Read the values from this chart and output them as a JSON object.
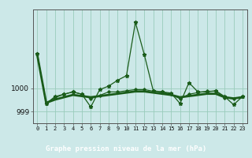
{
  "background_color": "#cce8e8",
  "grid_color": "#99ccbb",
  "line_color": "#1a5c1a",
  "xlabel_bg": "#2a6e2a",
  "xlabel_fg": "#ffffff",
  "hours": [
    0,
    1,
    2,
    3,
    4,
    5,
    6,
    7,
    8,
    9,
    10,
    11,
    12,
    13,
    14,
    15,
    16,
    17,
    18,
    19,
    20,
    21,
    22,
    23
  ],
  "pressure_jagged": [
    1001.5,
    999.35,
    999.65,
    999.75,
    999.85,
    999.75,
    999.2,
    999.95,
    1000.1,
    1000.35,
    1000.55,
    1002.85,
    1001.45,
    999.9,
    999.85,
    999.8,
    999.35,
    1000.25,
    999.85,
    999.85,
    999.9,
    999.65,
    999.3,
    999.65
  ],
  "pressure_mid": [
    1001.5,
    999.35,
    999.6,
    999.75,
    999.85,
    999.75,
    999.55,
    999.7,
    999.85,
    999.85,
    999.9,
    999.95,
    999.95,
    999.88,
    999.85,
    999.75,
    999.55,
    999.75,
    999.82,
    999.88,
    999.88,
    999.6,
    999.55,
    999.65
  ],
  "pressure_smooth": [
    1001.45,
    999.38,
    999.52,
    999.62,
    999.72,
    999.67,
    999.62,
    999.67,
    999.72,
    999.77,
    999.82,
    999.87,
    999.87,
    999.82,
    999.77,
    999.72,
    999.62,
    999.67,
    999.72,
    999.77,
    999.77,
    999.62,
    999.57,
    999.62
  ],
  "ytick_values": [
    999,
    1000
  ],
  "ylim_bottom": 998.5,
  "ylim_top": 1003.4,
  "xlim_left": -0.5,
  "xlim_right": 23.5,
  "xlabel": "Graphe pression niveau de la mer (hPa)"
}
